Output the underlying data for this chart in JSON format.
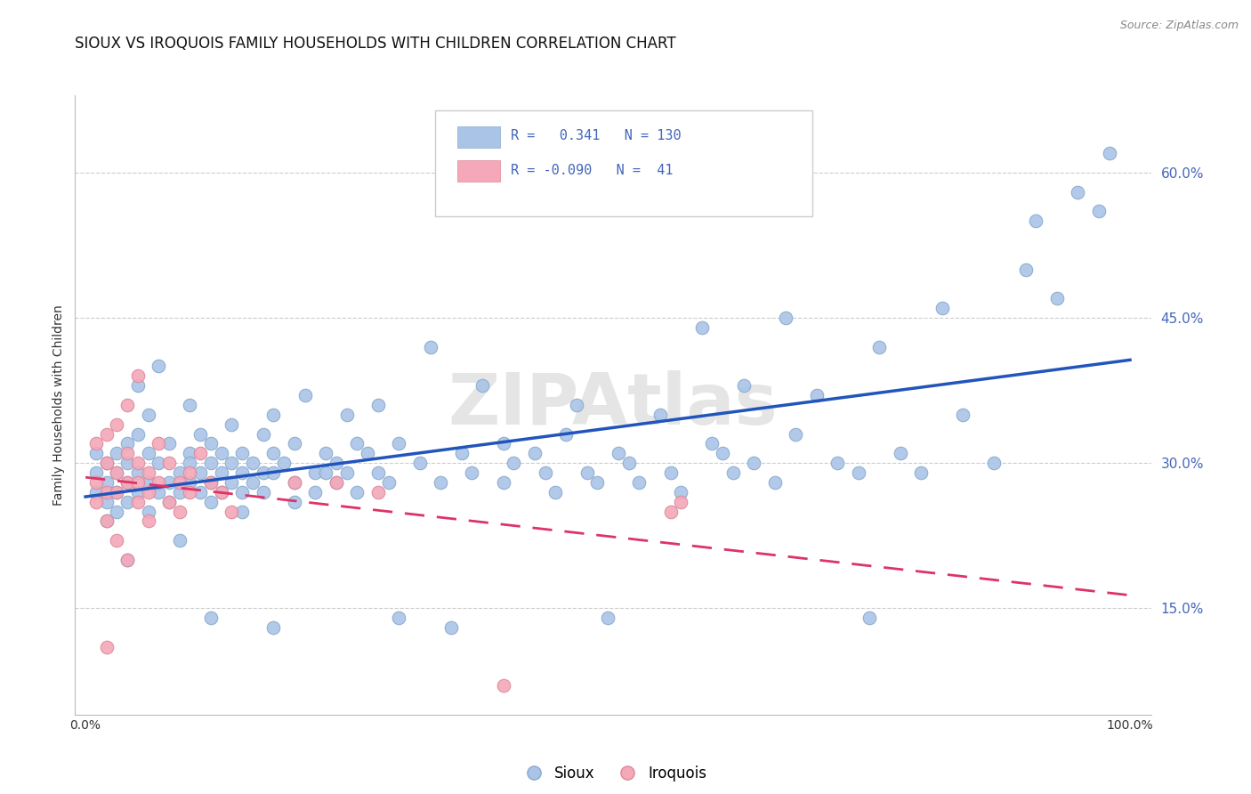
{
  "title": "SIOUX VS IROQUOIS FAMILY HOUSEHOLDS WITH CHILDREN CORRELATION CHART",
  "source": "Source: ZipAtlas.com",
  "ylabel": "Family Households with Children",
  "xlim": [
    -0.01,
    1.02
  ],
  "ylim": [
    0.04,
    0.68
  ],
  "yticks": [
    0.15,
    0.3,
    0.45,
    0.6
  ],
  "yticklabels": [
    "15.0%",
    "30.0%",
    "45.0%",
    "60.0%"
  ],
  "xtick_positions": [
    0.0,
    0.1,
    0.2,
    0.3,
    0.4,
    0.5,
    0.6,
    0.7,
    0.8,
    0.9,
    1.0
  ],
  "xticklabels": [
    "0.0%",
    "",
    "",
    "",
    "",
    "",
    "",
    "",
    "",
    "",
    "100.0%"
  ],
  "grid_color": "#cccccc",
  "sioux_color": "#aac4e8",
  "sioux_edge_color": "#88aacc",
  "iroquois_color": "#f4a8b8",
  "iroquois_edge_color": "#dd8899",
  "sioux_line_color": "#2255bb",
  "iroquois_line_color": "#dd3366",
  "ytick_color": "#4466bb",
  "xtick_color": "#333333",
  "background_color": "#ffffff",
  "title_fontsize": 12,
  "axis_label_fontsize": 10,
  "tick_fontsize": 10,
  "source_fontsize": 9,
  "sioux_scatter": [
    [
      0.01,
      0.27
    ],
    [
      0.01,
      0.29
    ],
    [
      0.01,
      0.31
    ],
    [
      0.02,
      0.28
    ],
    [
      0.02,
      0.26
    ],
    [
      0.02,
      0.3
    ],
    [
      0.02,
      0.24
    ],
    [
      0.03,
      0.29
    ],
    [
      0.03,
      0.27
    ],
    [
      0.03,
      0.31
    ],
    [
      0.03,
      0.25
    ],
    [
      0.04,
      0.3
    ],
    [
      0.04,
      0.28
    ],
    [
      0.04,
      0.26
    ],
    [
      0.04,
      0.32
    ],
    [
      0.04,
      0.2
    ],
    [
      0.05,
      0.29
    ],
    [
      0.05,
      0.27
    ],
    [
      0.05,
      0.33
    ],
    [
      0.05,
      0.38
    ],
    [
      0.06,
      0.28
    ],
    [
      0.06,
      0.31
    ],
    [
      0.06,
      0.25
    ],
    [
      0.06,
      0.35
    ],
    [
      0.07,
      0.3
    ],
    [
      0.07,
      0.27
    ],
    [
      0.07,
      0.4
    ],
    [
      0.08,
      0.28
    ],
    [
      0.08,
      0.32
    ],
    [
      0.08,
      0.26
    ],
    [
      0.09,
      0.29
    ],
    [
      0.09,
      0.27
    ],
    [
      0.09,
      0.22
    ],
    [
      0.1,
      0.31
    ],
    [
      0.1,
      0.28
    ],
    [
      0.1,
      0.36
    ],
    [
      0.1,
      0.3
    ],
    [
      0.11,
      0.27
    ],
    [
      0.11,
      0.33
    ],
    [
      0.11,
      0.29
    ],
    [
      0.12,
      0.3
    ],
    [
      0.12,
      0.28
    ],
    [
      0.12,
      0.26
    ],
    [
      0.12,
      0.32
    ],
    [
      0.12,
      0.14
    ],
    [
      0.13,
      0.31
    ],
    [
      0.13,
      0.29
    ],
    [
      0.13,
      0.27
    ],
    [
      0.14,
      0.3
    ],
    [
      0.14,
      0.28
    ],
    [
      0.14,
      0.34
    ],
    [
      0.15,
      0.29
    ],
    [
      0.15,
      0.27
    ],
    [
      0.15,
      0.31
    ],
    [
      0.15,
      0.25
    ],
    [
      0.16,
      0.3
    ],
    [
      0.16,
      0.28
    ],
    [
      0.17,
      0.33
    ],
    [
      0.17,
      0.29
    ],
    [
      0.17,
      0.27
    ],
    [
      0.18,
      0.31
    ],
    [
      0.18,
      0.29
    ],
    [
      0.18,
      0.35
    ],
    [
      0.18,
      0.13
    ],
    [
      0.19,
      0.3
    ],
    [
      0.2,
      0.28
    ],
    [
      0.2,
      0.26
    ],
    [
      0.2,
      0.32
    ],
    [
      0.21,
      0.37
    ],
    [
      0.22,
      0.29
    ],
    [
      0.22,
      0.27
    ],
    [
      0.23,
      0.31
    ],
    [
      0.23,
      0.29
    ],
    [
      0.24,
      0.3
    ],
    [
      0.24,
      0.28
    ],
    [
      0.25,
      0.35
    ],
    [
      0.25,
      0.29
    ],
    [
      0.26,
      0.27
    ],
    [
      0.26,
      0.32
    ],
    [
      0.27,
      0.31
    ],
    [
      0.28,
      0.29
    ],
    [
      0.28,
      0.36
    ],
    [
      0.29,
      0.28
    ],
    [
      0.3,
      0.14
    ],
    [
      0.3,
      0.32
    ],
    [
      0.32,
      0.3
    ],
    [
      0.33,
      0.42
    ],
    [
      0.34,
      0.28
    ],
    [
      0.35,
      0.13
    ],
    [
      0.36,
      0.31
    ],
    [
      0.37,
      0.29
    ],
    [
      0.38,
      0.38
    ],
    [
      0.4,
      0.32
    ],
    [
      0.4,
      0.28
    ],
    [
      0.41,
      0.3
    ],
    [
      0.43,
      0.31
    ],
    [
      0.44,
      0.29
    ],
    [
      0.45,
      0.27
    ],
    [
      0.46,
      0.33
    ],
    [
      0.47,
      0.36
    ],
    [
      0.48,
      0.29
    ],
    [
      0.49,
      0.28
    ],
    [
      0.5,
      0.14
    ],
    [
      0.51,
      0.31
    ],
    [
      0.52,
      0.3
    ],
    [
      0.53,
      0.28
    ],
    [
      0.55,
      0.35
    ],
    [
      0.56,
      0.29
    ],
    [
      0.57,
      0.27
    ],
    [
      0.59,
      0.44
    ],
    [
      0.6,
      0.32
    ],
    [
      0.61,
      0.31
    ],
    [
      0.62,
      0.29
    ],
    [
      0.63,
      0.38
    ],
    [
      0.64,
      0.3
    ],
    [
      0.66,
      0.28
    ],
    [
      0.67,
      0.45
    ],
    [
      0.68,
      0.33
    ],
    [
      0.7,
      0.37
    ],
    [
      0.72,
      0.3
    ],
    [
      0.74,
      0.29
    ],
    [
      0.75,
      0.14
    ],
    [
      0.76,
      0.42
    ],
    [
      0.78,
      0.31
    ],
    [
      0.8,
      0.29
    ],
    [
      0.82,
      0.46
    ],
    [
      0.84,
      0.35
    ],
    [
      0.87,
      0.3
    ],
    [
      0.9,
      0.5
    ],
    [
      0.91,
      0.55
    ],
    [
      0.93,
      0.47
    ],
    [
      0.95,
      0.58
    ],
    [
      0.97,
      0.56
    ],
    [
      0.98,
      0.62
    ]
  ],
  "iroquois_scatter": [
    [
      0.01,
      0.32
    ],
    [
      0.01,
      0.28
    ],
    [
      0.01,
      0.26
    ],
    [
      0.02,
      0.33
    ],
    [
      0.02,
      0.3
    ],
    [
      0.02,
      0.27
    ],
    [
      0.02,
      0.24
    ],
    [
      0.02,
      0.11
    ],
    [
      0.03,
      0.34
    ],
    [
      0.03,
      0.29
    ],
    [
      0.03,
      0.27
    ],
    [
      0.03,
      0.22
    ],
    [
      0.04,
      0.31
    ],
    [
      0.04,
      0.28
    ],
    [
      0.04,
      0.2
    ],
    [
      0.04,
      0.36
    ],
    [
      0.05,
      0.3
    ],
    [
      0.05,
      0.28
    ],
    [
      0.05,
      0.26
    ],
    [
      0.05,
      0.39
    ],
    [
      0.06,
      0.29
    ],
    [
      0.06,
      0.27
    ],
    [
      0.06,
      0.24
    ],
    [
      0.07,
      0.32
    ],
    [
      0.07,
      0.28
    ],
    [
      0.08,
      0.26
    ],
    [
      0.08,
      0.3
    ],
    [
      0.09,
      0.28
    ],
    [
      0.09,
      0.25
    ],
    [
      0.1,
      0.29
    ],
    [
      0.1,
      0.27
    ],
    [
      0.11,
      0.31
    ],
    [
      0.12,
      0.28
    ],
    [
      0.13,
      0.27
    ],
    [
      0.14,
      0.25
    ],
    [
      0.2,
      0.28
    ],
    [
      0.24,
      0.28
    ],
    [
      0.28,
      0.27
    ],
    [
      0.4,
      0.07
    ],
    [
      0.56,
      0.25
    ],
    [
      0.57,
      0.26
    ]
  ]
}
